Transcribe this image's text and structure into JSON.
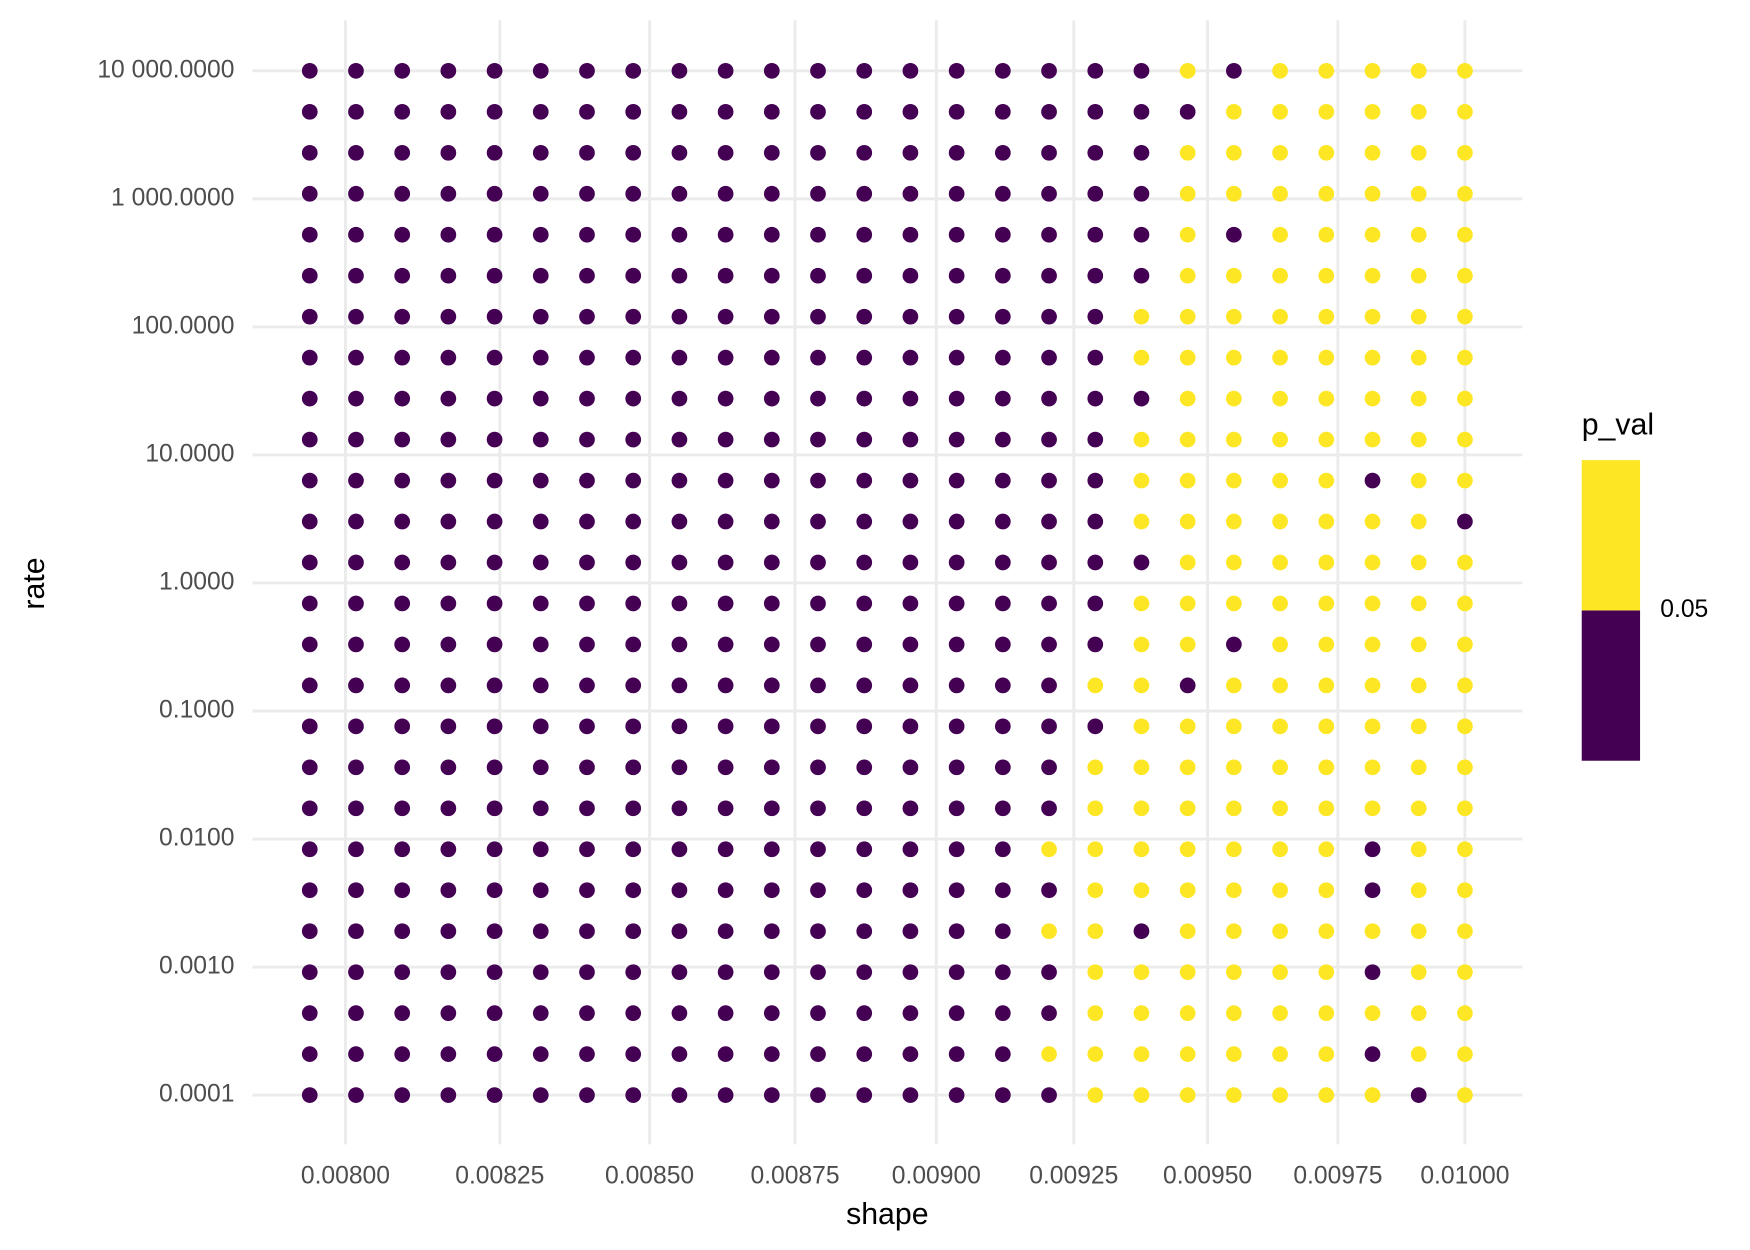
{
  "chart_data": {
    "type": "scatter",
    "x_label": "shape",
    "y_label": "rate",
    "x_scale": "log",
    "y_scale": "log",
    "grid": true,
    "x": [
      0.0079433,
      0.0080168,
      0.008091,
      0.0081658,
      0.0082414,
      0.0083176,
      0.0083946,
      0.0084723,
      0.0085507,
      0.0086298,
      0.0087096,
      0.0087902,
      0.0088716,
      0.0089536,
      0.0090365,
      0.0091201,
      0.0092045,
      0.0092897,
      0.0093756,
      0.0094624,
      0.0095499,
      0.0096383,
      0.0097275,
      0.0098175,
      0.0099083,
      0.01
    ],
    "y": [
      0.0001,
      0.00020893,
      0.00043652,
      0.00091201,
      0.0019055,
      0.0039811,
      0.0083176,
      0.017378,
      0.036308,
      0.075858,
      0.15849,
      0.33113,
      0.69183,
      1.4454,
      3.02,
      6.3096,
      13.183,
      27.542,
      57.544,
      120.23,
      251.19,
      524.81,
      1096.5,
      2290.9,
      4786.3,
      10000
    ],
    "point_colors": [
      [
        "#440154",
        "#440154",
        "#440154",
        "#440154",
        "#440154",
        "#440154",
        "#440154",
        "#440154",
        "#440154",
        "#440154",
        "#440154",
        "#440154",
        "#440154",
        "#440154",
        "#440154",
        "#440154",
        "#440154",
        "#fde725",
        "#fde725",
        "#fde725",
        "#fde725",
        "#fde725",
        "#fde725",
        "#fde725",
        "#440154",
        "#fde725"
      ],
      [
        "#440154",
        "#440154",
        "#440154",
        "#440154",
        "#440154",
        "#440154",
        "#440154",
        "#440154",
        "#440154",
        "#440154",
        "#440154",
        "#440154",
        "#440154",
        "#440154",
        "#440154",
        "#440154",
        "#fde725",
        "#fde725",
        "#fde725",
        "#fde725",
        "#fde725",
        "#fde725",
        "#fde725",
        "#440154",
        "#fde725",
        "#fde725"
      ],
      [
        "#440154",
        "#440154",
        "#440154",
        "#440154",
        "#440154",
        "#440154",
        "#440154",
        "#440154",
        "#440154",
        "#440154",
        "#440154",
        "#440154",
        "#440154",
        "#440154",
        "#440154",
        "#440154",
        "#440154",
        "#fde725",
        "#fde725",
        "#fde725",
        "#fde725",
        "#fde725",
        "#fde725",
        "#fde725",
        "#fde725",
        "#fde725"
      ],
      [
        "#440154",
        "#440154",
        "#440154",
        "#440154",
        "#440154",
        "#440154",
        "#440154",
        "#440154",
        "#440154",
        "#440154",
        "#440154",
        "#440154",
        "#440154",
        "#440154",
        "#440154",
        "#440154",
        "#440154",
        "#fde725",
        "#fde725",
        "#fde725",
        "#fde725",
        "#fde725",
        "#fde725",
        "#440154",
        "#fde725",
        "#fde725"
      ],
      [
        "#440154",
        "#440154",
        "#440154",
        "#440154",
        "#440154",
        "#440154",
        "#440154",
        "#440154",
        "#440154",
        "#440154",
        "#440154",
        "#440154",
        "#440154",
        "#440154",
        "#440154",
        "#440154",
        "#fde725",
        "#fde725",
        "#440154",
        "#fde725",
        "#fde725",
        "#fde725",
        "#fde725",
        "#fde725",
        "#fde725",
        "#fde725"
      ],
      [
        "#440154",
        "#440154",
        "#440154",
        "#440154",
        "#440154",
        "#440154",
        "#440154",
        "#440154",
        "#440154",
        "#440154",
        "#440154",
        "#440154",
        "#440154",
        "#440154",
        "#440154",
        "#440154",
        "#440154",
        "#fde725",
        "#fde725",
        "#fde725",
        "#fde725",
        "#fde725",
        "#fde725",
        "#440154",
        "#fde725",
        "#fde725"
      ],
      [
        "#440154",
        "#440154",
        "#440154",
        "#440154",
        "#440154",
        "#440154",
        "#440154",
        "#440154",
        "#440154",
        "#440154",
        "#440154",
        "#440154",
        "#440154",
        "#440154",
        "#440154",
        "#440154",
        "#fde725",
        "#fde725",
        "#fde725",
        "#fde725",
        "#fde725",
        "#fde725",
        "#fde725",
        "#440154",
        "#fde725",
        "#fde725"
      ],
      [
        "#440154",
        "#440154",
        "#440154",
        "#440154",
        "#440154",
        "#440154",
        "#440154",
        "#440154",
        "#440154",
        "#440154",
        "#440154",
        "#440154",
        "#440154",
        "#440154",
        "#440154",
        "#440154",
        "#440154",
        "#fde725",
        "#fde725",
        "#fde725",
        "#fde725",
        "#fde725",
        "#fde725",
        "#fde725",
        "#fde725",
        "#fde725"
      ],
      [
        "#440154",
        "#440154",
        "#440154",
        "#440154",
        "#440154",
        "#440154",
        "#440154",
        "#440154",
        "#440154",
        "#440154",
        "#440154",
        "#440154",
        "#440154",
        "#440154",
        "#440154",
        "#440154",
        "#440154",
        "#fde725",
        "#fde725",
        "#fde725",
        "#fde725",
        "#fde725",
        "#fde725",
        "#fde725",
        "#fde725",
        "#fde725"
      ],
      [
        "#440154",
        "#440154",
        "#440154",
        "#440154",
        "#440154",
        "#440154",
        "#440154",
        "#440154",
        "#440154",
        "#440154",
        "#440154",
        "#440154",
        "#440154",
        "#440154",
        "#440154",
        "#440154",
        "#440154",
        "#440154",
        "#fde725",
        "#fde725",
        "#fde725",
        "#fde725",
        "#fde725",
        "#fde725",
        "#fde725",
        "#fde725"
      ],
      [
        "#440154",
        "#440154",
        "#440154",
        "#440154",
        "#440154",
        "#440154",
        "#440154",
        "#440154",
        "#440154",
        "#440154",
        "#440154",
        "#440154",
        "#440154",
        "#440154",
        "#440154",
        "#440154",
        "#440154",
        "#fde725",
        "#fde725",
        "#440154",
        "#fde725",
        "#fde725",
        "#fde725",
        "#fde725",
        "#fde725",
        "#fde725"
      ],
      [
        "#440154",
        "#440154",
        "#440154",
        "#440154",
        "#440154",
        "#440154",
        "#440154",
        "#440154",
        "#440154",
        "#440154",
        "#440154",
        "#440154",
        "#440154",
        "#440154",
        "#440154",
        "#440154",
        "#440154",
        "#440154",
        "#fde725",
        "#fde725",
        "#440154",
        "#fde725",
        "#fde725",
        "#fde725",
        "#fde725",
        "#fde725"
      ],
      [
        "#440154",
        "#440154",
        "#440154",
        "#440154",
        "#440154",
        "#440154",
        "#440154",
        "#440154",
        "#440154",
        "#440154",
        "#440154",
        "#440154",
        "#440154",
        "#440154",
        "#440154",
        "#440154",
        "#440154",
        "#440154",
        "#fde725",
        "#fde725",
        "#fde725",
        "#fde725",
        "#fde725",
        "#fde725",
        "#fde725",
        "#fde725"
      ],
      [
        "#440154",
        "#440154",
        "#440154",
        "#440154",
        "#440154",
        "#440154",
        "#440154",
        "#440154",
        "#440154",
        "#440154",
        "#440154",
        "#440154",
        "#440154",
        "#440154",
        "#440154",
        "#440154",
        "#440154",
        "#440154",
        "#440154",
        "#fde725",
        "#fde725",
        "#fde725",
        "#fde725",
        "#fde725",
        "#fde725",
        "#fde725"
      ],
      [
        "#440154",
        "#440154",
        "#440154",
        "#440154",
        "#440154",
        "#440154",
        "#440154",
        "#440154",
        "#440154",
        "#440154",
        "#440154",
        "#440154",
        "#440154",
        "#440154",
        "#440154",
        "#440154",
        "#440154",
        "#440154",
        "#fde725",
        "#fde725",
        "#fde725",
        "#fde725",
        "#fde725",
        "#fde725",
        "#fde725",
        "#440154"
      ],
      [
        "#440154",
        "#440154",
        "#440154",
        "#440154",
        "#440154",
        "#440154",
        "#440154",
        "#440154",
        "#440154",
        "#440154",
        "#440154",
        "#440154",
        "#440154",
        "#440154",
        "#440154",
        "#440154",
        "#440154",
        "#440154",
        "#fde725",
        "#fde725",
        "#fde725",
        "#fde725",
        "#fde725",
        "#440154",
        "#fde725",
        "#fde725"
      ],
      [
        "#440154",
        "#440154",
        "#440154",
        "#440154",
        "#440154",
        "#440154",
        "#440154",
        "#440154",
        "#440154",
        "#440154",
        "#440154",
        "#440154",
        "#440154",
        "#440154",
        "#440154",
        "#440154",
        "#440154",
        "#440154",
        "#fde725",
        "#fde725",
        "#fde725",
        "#fde725",
        "#fde725",
        "#fde725",
        "#fde725",
        "#fde725"
      ],
      [
        "#440154",
        "#440154",
        "#440154",
        "#440154",
        "#440154",
        "#440154",
        "#440154",
        "#440154",
        "#440154",
        "#440154",
        "#440154",
        "#440154",
        "#440154",
        "#440154",
        "#440154",
        "#440154",
        "#440154",
        "#440154",
        "#440154",
        "#fde725",
        "#fde725",
        "#fde725",
        "#fde725",
        "#fde725",
        "#fde725",
        "#fde725"
      ],
      [
        "#440154",
        "#440154",
        "#440154",
        "#440154",
        "#440154",
        "#440154",
        "#440154",
        "#440154",
        "#440154",
        "#440154",
        "#440154",
        "#440154",
        "#440154",
        "#440154",
        "#440154",
        "#440154",
        "#440154",
        "#440154",
        "#fde725",
        "#fde725",
        "#fde725",
        "#fde725",
        "#fde725",
        "#fde725",
        "#fde725",
        "#fde725"
      ],
      [
        "#440154",
        "#440154",
        "#440154",
        "#440154",
        "#440154",
        "#440154",
        "#440154",
        "#440154",
        "#440154",
        "#440154",
        "#440154",
        "#440154",
        "#440154",
        "#440154",
        "#440154",
        "#440154",
        "#440154",
        "#440154",
        "#fde725",
        "#fde725",
        "#fde725",
        "#fde725",
        "#fde725",
        "#fde725",
        "#fde725",
        "#fde725"
      ],
      [
        "#440154",
        "#440154",
        "#440154",
        "#440154",
        "#440154",
        "#440154",
        "#440154",
        "#440154",
        "#440154",
        "#440154",
        "#440154",
        "#440154",
        "#440154",
        "#440154",
        "#440154",
        "#440154",
        "#440154",
        "#440154",
        "#440154",
        "#fde725",
        "#fde725",
        "#fde725",
        "#fde725",
        "#fde725",
        "#fde725",
        "#fde725"
      ],
      [
        "#440154",
        "#440154",
        "#440154",
        "#440154",
        "#440154",
        "#440154",
        "#440154",
        "#440154",
        "#440154",
        "#440154",
        "#440154",
        "#440154",
        "#440154",
        "#440154",
        "#440154",
        "#440154",
        "#440154",
        "#440154",
        "#440154",
        "#fde725",
        "#440154",
        "#fde725",
        "#fde725",
        "#fde725",
        "#fde725",
        "#fde725"
      ],
      [
        "#440154",
        "#440154",
        "#440154",
        "#440154",
        "#440154",
        "#440154",
        "#440154",
        "#440154",
        "#440154",
        "#440154",
        "#440154",
        "#440154",
        "#440154",
        "#440154",
        "#440154",
        "#440154",
        "#440154",
        "#440154",
        "#440154",
        "#fde725",
        "#fde725",
        "#fde725",
        "#fde725",
        "#fde725",
        "#fde725",
        "#fde725"
      ],
      [
        "#440154",
        "#440154",
        "#440154",
        "#440154",
        "#440154",
        "#440154",
        "#440154",
        "#440154",
        "#440154",
        "#440154",
        "#440154",
        "#440154",
        "#440154",
        "#440154",
        "#440154",
        "#440154",
        "#440154",
        "#440154",
        "#440154",
        "#fde725",
        "#fde725",
        "#fde725",
        "#fde725",
        "#fde725",
        "#fde725",
        "#fde725"
      ],
      [
        "#440154",
        "#440154",
        "#440154",
        "#440154",
        "#440154",
        "#440154",
        "#440154",
        "#440154",
        "#440154",
        "#440154",
        "#440154",
        "#440154",
        "#440154",
        "#440154",
        "#440154",
        "#440154",
        "#440154",
        "#440154",
        "#440154",
        "#440154",
        "#fde725",
        "#fde725",
        "#fde725",
        "#fde725",
        "#fde725",
        "#fde725"
      ],
      [
        "#440154",
        "#440154",
        "#440154",
        "#440154",
        "#440154",
        "#440154",
        "#440154",
        "#440154",
        "#440154",
        "#440154",
        "#440154",
        "#440154",
        "#440154",
        "#440154",
        "#440154",
        "#440154",
        "#440154",
        "#440154",
        "#440154",
        "#fde725",
        "#440154",
        "#fde725",
        "#fde725",
        "#fde725",
        "#fde725",
        "#fde725"
      ]
    ],
    "xlim": [
      0.007853,
      0.010115
    ],
    "ylim": [
      4.12e-05,
      24800
    ],
    "xticks": [
      {
        "value": 0.008,
        "label": "0.00800"
      },
      {
        "value": 0.00825,
        "label": "0.00825"
      },
      {
        "value": 0.0085,
        "label": "0.00850"
      },
      {
        "value": 0.00875,
        "label": "0.00875"
      },
      {
        "value": 0.009,
        "label": "0.00900"
      },
      {
        "value": 0.00925,
        "label": "0.00925"
      },
      {
        "value": 0.0095,
        "label": "0.00950"
      },
      {
        "value": 0.00975,
        "label": "0.00975"
      },
      {
        "value": 0.01,
        "label": "0.01000"
      }
    ],
    "yticks": [
      {
        "value": 0.0001,
        "label": "0.0001"
      },
      {
        "value": 0.001,
        "label": "0.0010"
      },
      {
        "value": 0.01,
        "label": "0.0100"
      },
      {
        "value": 0.1,
        "label": "0.1000"
      },
      {
        "value": 1,
        "label": "1.0000"
      },
      {
        "value": 10,
        "label": "10.0000"
      },
      {
        "value": 100,
        "label": "100.0000"
      },
      {
        "value": 1000,
        "label": "1 000.0000"
      },
      {
        "value": 10000,
        "label": "10 000.0000"
      }
    ],
    "legend": {
      "title": "p_val",
      "breaks": [
        0.05
      ],
      "colors": [
        "#440154",
        "#fde725"
      ],
      "position": "right"
    }
  }
}
